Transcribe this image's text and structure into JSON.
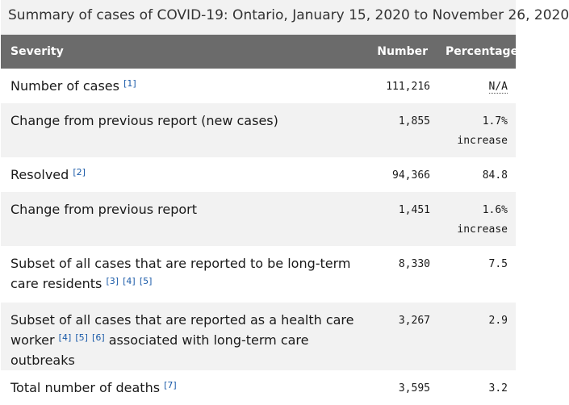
{
  "caption": "Summary of cases of COVID-19: Ontario, January 15, 2020 to November 26, 2020",
  "headers": {
    "severity": "Severity",
    "number": "Number",
    "percentage": "Percentage"
  },
  "rows": [
    {
      "label": "Number of cases",
      "refs": [
        "[1]"
      ],
      "number": "111,216",
      "percentage": "N/A"
    },
    {
      "label": "Change from previous report (new cases)",
      "number": "1,855",
      "percentage": "1.7%",
      "percentage_note": "increase"
    },
    {
      "label": "Resolved",
      "refs": [
        "[2]"
      ],
      "number": "94,366",
      "percentage": "84.8"
    },
    {
      "label": "Change from previous report",
      "number": "1,451",
      "percentage": "1.6%",
      "percentage_note": "increase"
    },
    {
      "label": "Subset of all cases that are reported to be long-term care residents",
      "refs": [
        "[3]",
        "[4]",
        "[5]"
      ],
      "number": "8,330",
      "percentage": "7.5"
    },
    {
      "label_before": "Subset of all cases that are reported as a health care worker",
      "refs": [
        "[4]",
        "[5]",
        "[6]"
      ],
      "label_after": "associated with long-term care outbreaks",
      "number": "3,267",
      "percentage": "2.9"
    },
    {
      "label": "Total number of deaths",
      "refs": [
        "[7]"
      ],
      "number": "3,595",
      "percentage": "3.2"
    }
  ]
}
